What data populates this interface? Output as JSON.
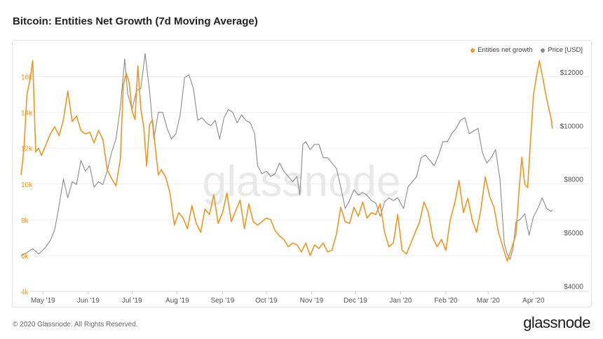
{
  "page": {
    "title": "Bitcoin: Entities Net Growth (7d Moving Average)",
    "footer": "© 2020 Glassnode. All Rights Reserved.",
    "brand": "glassnode",
    "watermark": "glassnode"
  },
  "chart_data": {
    "type": "line",
    "title": "Bitcoin: Entities Net Growth (7d Moving Average)",
    "legend_position": "top-right",
    "grid": true,
    "x_ticks": [
      {
        "date": "2019-05-01",
        "label": "May '19"
      },
      {
        "date": "2019-06-01",
        "label": "Jun '19"
      },
      {
        "date": "2019-07-01",
        "label": "Jul '19"
      },
      {
        "date": "2019-08-01",
        "label": "Aug '19"
      },
      {
        "date": "2019-09-01",
        "label": "Sep '19"
      },
      {
        "date": "2019-10-01",
        "label": "Oct '19"
      },
      {
        "date": "2019-11-01",
        "label": "Nov '19"
      },
      {
        "date": "2019-12-01",
        "label": "Dec '19"
      },
      {
        "date": "2020-01-01",
        "label": "Jan '20"
      },
      {
        "date": "2020-02-01",
        "label": "Feb '20"
      },
      {
        "date": "2020-03-01",
        "label": "Mar '20"
      },
      {
        "date": "2020-04-01",
        "label": "Apr '20"
      }
    ],
    "x_range": [
      "2019-04-15",
      "2020-04-15"
    ],
    "y_left": {
      "ticks": [
        4000,
        6000,
        8000,
        10000,
        12000,
        14000,
        16000
      ],
      "labels": [
        "4k",
        "6k",
        "8k",
        "10k",
        "12k",
        "14k",
        "16k"
      ],
      "range": [
        4000,
        17000
      ],
      "color": "#f7931a"
    },
    "y_right": {
      "ticks": [
        4000,
        6000,
        8000,
        10000,
        12000
      ],
      "labels": [
        "$4000",
        "$6000",
        "$8000",
        "$10000",
        "$12000"
      ],
      "range": [
        3800,
        12500
      ],
      "color": "#555555"
    },
    "series": [
      {
        "name": "Entities net growth",
        "axis": "left",
        "color": "#f7931a",
        "points": [
          [
            "2019-04-16",
            10500
          ],
          [
            "2019-04-18",
            12000
          ],
          [
            "2019-04-20",
            15000
          ],
          [
            "2019-04-22",
            15800
          ],
          [
            "2019-04-24",
            16900
          ],
          [
            "2019-04-26",
            11800
          ],
          [
            "2019-04-28",
            12000
          ],
          [
            "2019-04-30",
            11600
          ],
          [
            "2019-05-03",
            12200
          ],
          [
            "2019-05-06",
            12800
          ],
          [
            "2019-05-09",
            13200
          ],
          [
            "2019-05-12",
            12700
          ],
          [
            "2019-05-15",
            13600
          ],
          [
            "2019-05-18",
            15200
          ],
          [
            "2019-05-21",
            13500
          ],
          [
            "2019-05-24",
            13800
          ],
          [
            "2019-05-27",
            13000
          ],
          [
            "2019-05-30",
            12800
          ],
          [
            "2019-06-02",
            12900
          ],
          [
            "2019-06-05",
            12300
          ],
          [
            "2019-06-08",
            13000
          ],
          [
            "2019-06-11",
            12500
          ],
          [
            "2019-06-14",
            10800
          ],
          [
            "2019-06-17",
            10300
          ],
          [
            "2019-06-20",
            9900
          ],
          [
            "2019-06-23",
            11400
          ],
          [
            "2019-06-25",
            15500
          ],
          [
            "2019-06-27",
            16200
          ],
          [
            "2019-06-29",
            15700
          ],
          [
            "2019-07-01",
            14100
          ],
          [
            "2019-07-03",
            13600
          ],
          [
            "2019-07-05",
            16600
          ],
          [
            "2019-07-07",
            14200
          ],
          [
            "2019-07-09",
            13200
          ],
          [
            "2019-07-11",
            11000
          ],
          [
            "2019-07-13",
            13300
          ],
          [
            "2019-07-15",
            13600
          ],
          [
            "2019-07-17",
            12000
          ],
          [
            "2019-07-19",
            10500
          ],
          [
            "2019-07-21",
            10800
          ],
          [
            "2019-07-24",
            10400
          ],
          [
            "2019-07-27",
            9500
          ],
          [
            "2019-07-30",
            7700
          ],
          [
            "2019-08-02",
            8400
          ],
          [
            "2019-08-05",
            8100
          ],
          [
            "2019-08-08",
            7500
          ],
          [
            "2019-08-11",
            8800
          ],
          [
            "2019-08-14",
            7800
          ],
          [
            "2019-08-17",
            7300
          ],
          [
            "2019-08-20",
            8600
          ],
          [
            "2019-08-23",
            8300
          ],
          [
            "2019-08-26",
            9400
          ],
          [
            "2019-08-29",
            7800
          ],
          [
            "2019-09-01",
            8400
          ],
          [
            "2019-09-04",
            9500
          ],
          [
            "2019-09-07",
            7900
          ],
          [
            "2019-09-10",
            8500
          ],
          [
            "2019-09-13",
            9100
          ],
          [
            "2019-09-16",
            7500
          ],
          [
            "2019-09-19",
            8900
          ],
          [
            "2019-09-22",
            7900
          ],
          [
            "2019-09-25",
            7700
          ],
          [
            "2019-09-28",
            7900
          ],
          [
            "2019-10-01",
            8100
          ],
          [
            "2019-10-04",
            8000
          ],
          [
            "2019-10-07",
            7400
          ],
          [
            "2019-10-10",
            7100
          ],
          [
            "2019-10-13",
            6900
          ],
          [
            "2019-10-16",
            6500
          ],
          [
            "2019-10-19",
            6700
          ],
          [
            "2019-10-22",
            6600
          ],
          [
            "2019-10-25",
            6200
          ],
          [
            "2019-10-28",
            6700
          ],
          [
            "2019-10-31",
            6000
          ],
          [
            "2019-11-03",
            6600
          ],
          [
            "2019-11-06",
            6400
          ],
          [
            "2019-11-09",
            6700
          ],
          [
            "2019-11-12",
            6200
          ],
          [
            "2019-11-15",
            6300
          ],
          [
            "2019-11-18",
            7200
          ],
          [
            "2019-11-21",
            8700
          ],
          [
            "2019-11-24",
            7900
          ],
          [
            "2019-11-27",
            7800
          ],
          [
            "2019-11-30",
            8700
          ],
          [
            "2019-12-03",
            8200
          ],
          [
            "2019-12-06",
            9000
          ],
          [
            "2019-12-09",
            8100
          ],
          [
            "2019-12-12",
            8400
          ],
          [
            "2019-12-15",
            8300
          ],
          [
            "2019-12-18",
            8900
          ],
          [
            "2019-12-21",
            7300
          ],
          [
            "2019-12-24",
            6500
          ],
          [
            "2019-12-27",
            6700
          ],
          [
            "2019-12-30",
            8300
          ],
          [
            "2020-01-02",
            6300
          ],
          [
            "2020-01-05",
            6100
          ],
          [
            "2020-01-08",
            6700
          ],
          [
            "2020-01-11",
            7300
          ],
          [
            "2020-01-14",
            7900
          ],
          [
            "2020-01-17",
            9000
          ],
          [
            "2020-01-20",
            8400
          ],
          [
            "2020-01-23",
            7000
          ],
          [
            "2020-01-26",
            6500
          ],
          [
            "2020-01-29",
            6900
          ],
          [
            "2020-02-01",
            6300
          ],
          [
            "2020-02-04",
            8000
          ],
          [
            "2020-02-07",
            8900
          ],
          [
            "2020-02-10",
            10200
          ],
          [
            "2020-02-13",
            8400
          ],
          [
            "2020-02-16",
            9200
          ],
          [
            "2020-02-19",
            8000
          ],
          [
            "2020-02-22",
            7300
          ],
          [
            "2020-02-25",
            8600
          ],
          [
            "2020-02-28",
            10400
          ],
          [
            "2020-03-02",
            9300
          ],
          [
            "2020-03-05",
            8700
          ],
          [
            "2020-03-08",
            7300
          ],
          [
            "2020-03-11",
            6500
          ],
          [
            "2020-03-14",
            5700
          ],
          [
            "2020-03-17",
            6400
          ],
          [
            "2020-03-20",
            7200
          ],
          [
            "2020-03-22",
            9500
          ],
          [
            "2020-03-24",
            11500
          ],
          [
            "2020-03-26",
            10000
          ],
          [
            "2020-03-28",
            9800
          ],
          [
            "2020-03-30",
            12500
          ],
          [
            "2020-04-01",
            15000
          ],
          [
            "2020-04-03",
            16000
          ],
          [
            "2020-04-05",
            16900
          ],
          [
            "2020-04-07",
            16100
          ],
          [
            "2020-04-09",
            15200
          ],
          [
            "2020-04-11",
            14400
          ],
          [
            "2020-04-13",
            13700
          ],
          [
            "2020-04-14",
            13100
          ]
        ]
      },
      {
        "name": "Price [USD]",
        "axis": "right",
        "color": "#8a8a8a",
        "points": [
          [
            "2019-04-16",
            5150
          ],
          [
            "2019-04-20",
            5250
          ],
          [
            "2019-04-24",
            5400
          ],
          [
            "2019-04-28",
            5200
          ],
          [
            "2019-05-02",
            5400
          ],
          [
            "2019-05-06",
            5700
          ],
          [
            "2019-05-09",
            6100
          ],
          [
            "2019-05-12",
            7000
          ],
          [
            "2019-05-15",
            8000
          ],
          [
            "2019-05-18",
            7300
          ],
          [
            "2019-05-21",
            7900
          ],
          [
            "2019-05-24",
            7800
          ],
          [
            "2019-05-27",
            8700
          ],
          [
            "2019-05-30",
            8300
          ],
          [
            "2019-06-02",
            8500
          ],
          [
            "2019-06-05",
            7700
          ],
          [
            "2019-06-08",
            7900
          ],
          [
            "2019-06-11",
            7800
          ],
          [
            "2019-06-14",
            8300
          ],
          [
            "2019-06-17",
            9000
          ],
          [
            "2019-06-20",
            9500
          ],
          [
            "2019-06-23",
            10700
          ],
          [
            "2019-06-26",
            12500
          ],
          [
            "2019-06-28",
            11200
          ],
          [
            "2019-07-01",
            10600
          ],
          [
            "2019-07-04",
            11300
          ],
          [
            "2019-07-07",
            11400
          ],
          [
            "2019-07-10",
            12700
          ],
          [
            "2019-07-13",
            11300
          ],
          [
            "2019-07-16",
            9500
          ],
          [
            "2019-07-19",
            10500
          ],
          [
            "2019-07-22",
            10500
          ],
          [
            "2019-07-25",
            9900
          ],
          [
            "2019-07-28",
            9500
          ],
          [
            "2019-07-31",
            9700
          ],
          [
            "2019-08-03",
            10400
          ],
          [
            "2019-08-06",
            11800
          ],
          [
            "2019-08-09",
            11900
          ],
          [
            "2019-08-12",
            11400
          ],
          [
            "2019-08-15",
            10200
          ],
          [
            "2019-08-18",
            10300
          ],
          [
            "2019-08-21",
            10100
          ],
          [
            "2019-08-24",
            10000
          ],
          [
            "2019-08-27",
            10200
          ],
          [
            "2019-08-30",
            9500
          ],
          [
            "2019-09-02",
            10300
          ],
          [
            "2019-09-05",
            10600
          ],
          [
            "2019-09-08",
            10500
          ],
          [
            "2019-09-11",
            10100
          ],
          [
            "2019-09-14",
            10400
          ],
          [
            "2019-09-17",
            10200
          ],
          [
            "2019-09-20",
            10100
          ],
          [
            "2019-09-23",
            9700
          ],
          [
            "2019-09-25",
            8500
          ],
          [
            "2019-09-28",
            8200
          ],
          [
            "2019-10-01",
            8300
          ],
          [
            "2019-10-04",
            8100
          ],
          [
            "2019-10-07",
            8200
          ],
          [
            "2019-10-10",
            8600
          ],
          [
            "2019-10-13",
            8300
          ],
          [
            "2019-10-16",
            8100
          ],
          [
            "2019-10-19",
            7900
          ],
          [
            "2019-10-22",
            8100
          ],
          [
            "2019-10-24",
            7400
          ],
          [
            "2019-10-26",
            9300
          ],
          [
            "2019-10-28",
            9400
          ],
          [
            "2019-10-31",
            9100
          ],
          [
            "2019-11-03",
            9300
          ],
          [
            "2019-11-06",
            9300
          ],
          [
            "2019-11-09",
            8800
          ],
          [
            "2019-11-12",
            8800
          ],
          [
            "2019-11-15",
            8600
          ],
          [
            "2019-11-18",
            8400
          ],
          [
            "2019-11-21",
            7700
          ],
          [
            "2019-11-24",
            6900
          ],
          [
            "2019-11-27",
            7200
          ],
          [
            "2019-11-30",
            7600
          ],
          [
            "2019-12-03",
            7400
          ],
          [
            "2019-12-06",
            7500
          ],
          [
            "2019-12-09",
            7400
          ],
          [
            "2019-12-12",
            7200
          ],
          [
            "2019-12-15",
            7100
          ],
          [
            "2019-12-18",
            6600
          ],
          [
            "2019-12-21",
            7150
          ],
          [
            "2019-12-24",
            7300
          ],
          [
            "2019-12-27",
            7200
          ],
          [
            "2019-12-30",
            7300
          ],
          [
            "2020-01-03",
            6900
          ],
          [
            "2020-01-06",
            7700
          ],
          [
            "2020-01-09",
            7900
          ],
          [
            "2020-01-12",
            8100
          ],
          [
            "2020-01-15",
            8800
          ],
          [
            "2020-01-18",
            8900
          ],
          [
            "2020-01-21",
            8700
          ],
          [
            "2020-01-24",
            8500
          ],
          [
            "2020-01-27",
            8900
          ],
          [
            "2020-01-30",
            9400
          ],
          [
            "2020-02-02",
            9400
          ],
          [
            "2020-02-05",
            9700
          ],
          [
            "2020-02-08",
            9900
          ],
          [
            "2020-02-11",
            10200
          ],
          [
            "2020-02-14",
            10300
          ],
          [
            "2020-02-17",
            9700
          ],
          [
            "2020-02-20",
            9800
          ],
          [
            "2020-02-23",
            9900
          ],
          [
            "2020-02-26",
            9000
          ],
          [
            "2020-02-29",
            8600
          ],
          [
            "2020-03-03",
            8800
          ],
          [
            "2020-03-06",
            9100
          ],
          [
            "2020-03-09",
            8000
          ],
          [
            "2020-03-12",
            5600
          ],
          [
            "2020-03-14",
            5200
          ],
          [
            "2020-03-16",
            5000
          ],
          [
            "2020-03-18",
            5400
          ],
          [
            "2020-03-20",
            6400
          ],
          [
            "2020-03-23",
            6500
          ],
          [
            "2020-03-26",
            6700
          ],
          [
            "2020-03-29",
            5900
          ],
          [
            "2020-04-01",
            6600
          ],
          [
            "2020-04-04",
            6900
          ],
          [
            "2020-04-07",
            7300
          ],
          [
            "2020-04-10",
            6900
          ],
          [
            "2020-04-13",
            6800
          ],
          [
            "2020-04-14",
            6850
          ]
        ]
      }
    ]
  }
}
